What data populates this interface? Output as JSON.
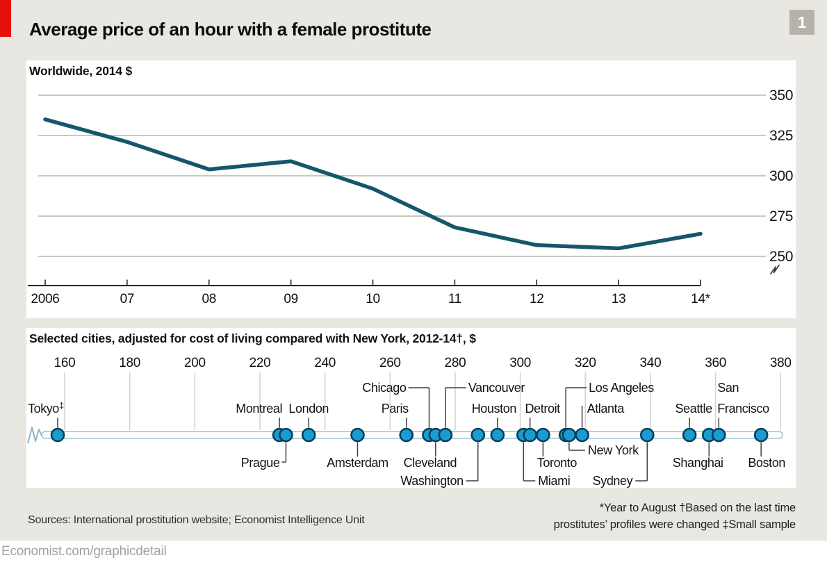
{
  "page": {
    "background_color": "#e9e7e1",
    "accent_red": "#e3120b",
    "bottom_link": "Economist.com/graphicdetail"
  },
  "header": {
    "title": "Average price of an hour with a female prostitute",
    "badge": "1"
  },
  "footnotes": {
    "line1": "*Year to August   †Based on the last time",
    "line2": "prostitutes’ profiles were changed   ‡Small sample"
  },
  "sources": "Sources: International prostitution website; Economist Intelligence Unit",
  "chart_data": [
    {
      "type": "line",
      "title": "Worldwide, 2014 $",
      "x": [
        2006,
        2007,
        2008,
        2009,
        2010,
        2011,
        2012,
        2013,
        2014
      ],
      "x_tick_labels": [
        "2006",
        "07",
        "08",
        "09",
        "10",
        "11",
        "12",
        "13",
        "14*"
      ],
      "values": [
        335,
        321,
        304,
        309,
        292,
        268,
        257,
        255,
        264
      ],
      "ylim": [
        245,
        355
      ],
      "yticks": [
        250,
        275,
        300,
        325,
        350
      ],
      "grid": "horizontal",
      "legend": "none",
      "y_axis_side": "right",
      "axis_break_bottom_right": true,
      "line_color": "#16566c"
    },
    {
      "type": "scatter",
      "title": "Selected cities, adjusted for cost of living compared with New York, 2012-14†, $",
      "xlim": [
        160,
        380
      ],
      "xticks": [
        160,
        180,
        200,
        220,
        240,
        260,
        280,
        300,
        320,
        340,
        360,
        380
      ],
      "axis_break_left": true,
      "dot_color": "#1a9bd2",
      "dot_edge_color": "#073f58",
      "points": [
        {
          "city": "Tokyo",
          "marker": "‡",
          "value": null,
          "note": "plotted left of 160 beyond axis break"
        },
        {
          "city": "Montreal",
          "value": 226
        },
        {
          "city": "Prague",
          "value": 228
        },
        {
          "city": "London",
          "value": 235
        },
        {
          "city": "Amsterdam",
          "value": 250
        },
        {
          "city": "Paris",
          "value": 265
        },
        {
          "city": "Chicago",
          "value": 272
        },
        {
          "city": "Cleveland",
          "value": 274
        },
        {
          "city": "Vancouver",
          "value": 277
        },
        {
          "city": "Washington",
          "value": 287
        },
        {
          "city": "Houston",
          "value": 293
        },
        {
          "city": "Miami",
          "value": 301
        },
        {
          "city": "Detroit",
          "value": 303
        },
        {
          "city": "Toronto",
          "value": 307
        },
        {
          "city": "Los Angeles",
          "value": 314
        },
        {
          "city": "New York",
          "value": 315
        },
        {
          "city": "Atlanta",
          "value": 319
        },
        {
          "city": "Sydney",
          "value": 339
        },
        {
          "city": "Seattle",
          "value": 352
        },
        {
          "city": "Shanghai",
          "value": 358
        },
        {
          "city": "San Francisco",
          "value": 361
        },
        {
          "city": "Boston",
          "value": 374
        }
      ]
    }
  ]
}
